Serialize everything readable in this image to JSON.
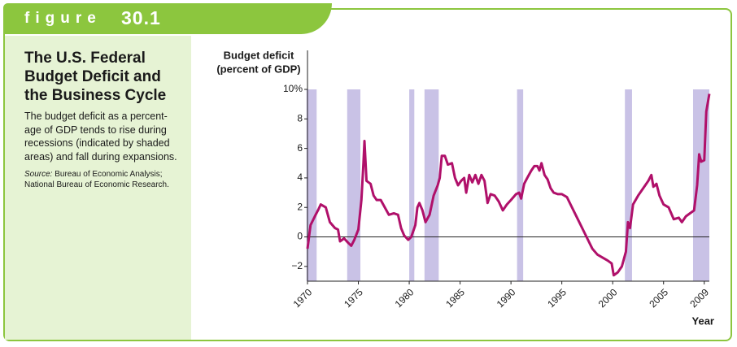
{
  "figure": {
    "label": "figure",
    "number": "30.1"
  },
  "sidebar": {
    "title_lines": [
      "The U.S. Federal",
      "Budget Deficit and",
      "the Business Cycle"
    ],
    "description_lines": [
      "The budget deficit as a percent-",
      "age of GDP tends to rise during",
      "recessions (indicated by shaded",
      "areas) and fall during expansions."
    ],
    "source_label": "Source:",
    "source_lines": [
      " Bureau of Economic Analysis;",
      "National Bureau of Economic Research."
    ]
  },
  "chart_data": {
    "type": "line",
    "y_label_lines": [
      "Budget deficit",
      "(percent of GDP)"
    ],
    "x_label": "Year",
    "color": "#b0106a",
    "shade_color": "#c9c2e6",
    "shaded_periods": [
      [
        1969.9,
        1970.9
      ],
      [
        1973.9,
        1975.2
      ],
      [
        1980.0,
        1980.5
      ],
      [
        1981.5,
        1982.9
      ],
      [
        1990.6,
        1991.2
      ],
      [
        2001.2,
        2001.9
      ],
      [
        2007.9,
        2009.5
      ]
    ],
    "xlim": [
      1970,
      2009.5
    ],
    "ylim": [
      -3,
      10
    ],
    "xticks": [
      1970,
      1975,
      1980,
      1985,
      1990,
      1995,
      2000,
      2005,
      2009
    ],
    "yticks": [
      {
        "value": -2,
        "label": "−2"
      },
      0,
      2,
      4,
      6,
      8,
      {
        "value": 10,
        "label": "10%"
      }
    ],
    "x": [
      1970.0,
      1970.3,
      1970.8,
      1971.1,
      1971.3,
      1971.8,
      1972.2,
      1972.7,
      1973.0,
      1973.2,
      1973.6,
      1974.0,
      1974.3,
      1974.6,
      1975.0,
      1975.3,
      1975.5,
      1975.6,
      1975.8,
      1976.2,
      1976.5,
      1976.8,
      1977.2,
      1977.6,
      1978.0,
      1978.5,
      1978.9,
      1979.2,
      1979.5,
      1979.9,
      1980.2,
      1980.6,
      1980.8,
      1981.0,
      1981.3,
      1981.6,
      1982.0,
      1982.4,
      1982.8,
      1983.0,
      1983.2,
      1983.5,
      1983.8,
      1984.2,
      1984.5,
      1984.8,
      1985.1,
      1985.4,
      1985.6,
      1985.9,
      1986.2,
      1986.5,
      1986.8,
      1987.1,
      1987.4,
      1987.7,
      1988.0,
      1988.4,
      1988.8,
      1989.2,
      1989.6,
      1990.0,
      1990.5,
      1990.8,
      1991.0,
      1991.3,
      1991.6,
      1992.0,
      1992.3,
      1992.6,
      1992.8,
      1993.0,
      1993.3,
      1993.6,
      1993.9,
      1994.2,
      1994.6,
      1995.0,
      1995.5,
      1996.0,
      1996.5,
      1997.0,
      1997.5,
      1998.0,
      1998.5,
      1999.0,
      1999.5,
      1999.9,
      2000.1,
      2000.5,
      2000.9,
      2001.3,
      2001.5,
      2001.7,
      2002.0,
      2002.5,
      2003.0,
      2003.5,
      2003.8,
      2004.0,
      2004.3,
      2004.6,
      2005.0,
      2005.5,
      2006.0,
      2006.5,
      2006.8,
      2007.2,
      2007.6,
      2008.0,
      2008.3,
      2008.5,
      2008.7,
      2009.0,
      2009.2,
      2009.5
    ],
    "values": [
      -0.8,
      0.8,
      1.5,
      1.9,
      2.2,
      2.0,
      1.0,
      0.6,
      0.5,
      -0.3,
      -0.1,
      -0.4,
      -0.6,
      -0.2,
      0.5,
      2.5,
      5.0,
      6.5,
      3.8,
      3.6,
      2.8,
      2.5,
      2.5,
      2.0,
      1.5,
      1.6,
      1.5,
      0.6,
      0.1,
      -0.2,
      0.0,
      0.8,
      2.0,
      2.3,
      1.8,
      1.0,
      1.5,
      2.8,
      3.5,
      4.0,
      5.5,
      5.5,
      4.9,
      5.0,
      4.0,
      3.5,
      3.8,
      4.0,
      3.0,
      4.2,
      3.7,
      4.2,
      3.6,
      4.2,
      3.8,
      2.3,
      2.9,
      2.8,
      2.4,
      1.8,
      2.2,
      2.5,
      2.9,
      3.0,
      2.6,
      3.6,
      4.0,
      4.5,
      4.8,
      4.8,
      4.5,
      5.0,
      4.2,
      3.9,
      3.3,
      3.0,
      2.9,
      2.9,
      2.7,
      2.0,
      1.3,
      0.6,
      -0.1,
      -0.8,
      -1.2,
      -1.4,
      -1.6,
      -1.8,
      -2.6,
      -2.4,
      -2.0,
      -1.0,
      1.0,
      0.6,
      2.2,
      2.8,
      3.3,
      3.8,
      4.2,
      3.4,
      3.6,
      2.8,
      2.2,
      2.0,
      1.2,
      1.3,
      1.0,
      1.4,
      1.6,
      1.8,
      3.5,
      5.6,
      5.1,
      5.2,
      8.5,
      9.7
    ]
  }
}
